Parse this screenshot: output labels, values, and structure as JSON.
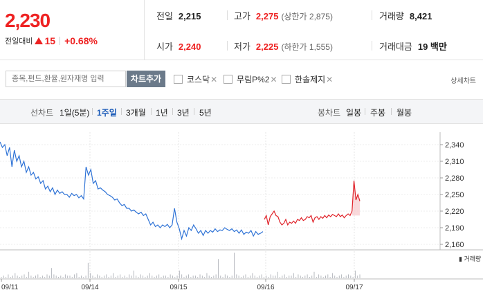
{
  "summary": {
    "price": "2,230",
    "change_label": "전일대비",
    "change_value": "15",
    "change_rate": "+0.68%",
    "stats": {
      "prev_close_label": "전일",
      "prev_close": "2,215",
      "high_label": "고가",
      "high": "2,275",
      "upper_limit": "(상한가 2,875)",
      "volume_label": "거래량",
      "volume": "8,421",
      "open_label": "시가",
      "open": "2,240",
      "low_label": "저가",
      "low": "2,225",
      "lower_limit": "(하한가 1,555)",
      "amount_label": "거래대금",
      "amount": "19 백만"
    }
  },
  "toolbar": {
    "search_placeholder": "종목,펀드,환율,원자재명 입력",
    "add_chart": "차트추가",
    "compare": [
      "코스닥",
      "무림P%2",
      "한솔제지"
    ],
    "detail_chart": "상세차트"
  },
  "period": {
    "line_label": "선차트",
    "line_options": [
      "1일(5분)",
      "1주일",
      "3개월",
      "1년",
      "3년",
      "5년"
    ],
    "line_active": "1주일",
    "candle_label": "봉차트",
    "candle_options": [
      "일봉",
      "주봉",
      "월봉"
    ]
  },
  "chart_data": {
    "type": "line",
    "y_ticks": [
      "2,340",
      "2,310",
      "2,280",
      "2,250",
      "2,220",
      "2,190",
      "2,160"
    ],
    "ylim": [
      2160,
      2340
    ],
    "x_labels": [
      "09/11",
      "09/14",
      "09/15",
      "09/16",
      "09/17"
    ],
    "volume_label": "거래량",
    "series": [
      {
        "color": "#2f73d6",
        "values": [
          2345,
          2335,
          2340,
          2320,
          2335,
          2300,
          2330,
          2310,
          2320,
          2300,
          2310,
          2290,
          2300,
          2285,
          2290,
          2278,
          2282,
          2270,
          2275,
          2260,
          2265,
          2255,
          2262,
          2250,
          2258,
          2252,
          2255,
          2250,
          2250,
          2245,
          2252,
          2248,
          2250,
          2244,
          2248,
          2242,
          2300,
          2285,
          2295,
          2270,
          2275,
          2260,
          2262,
          2258,
          2255,
          2250,
          2248,
          2245,
          2240,
          2242,
          2235,
          2230,
          2232,
          2225,
          2225,
          2220,
          2222,
          2218,
          2215,
          2218,
          2212,
          2215,
          2205,
          2195,
          2200,
          2192,
          2195,
          2190,
          2195,
          2192,
          2196,
          2190,
          2195,
          2225,
          2200,
          2188,
          2170,
          2185,
          2175,
          2190,
          2185,
          2195,
          2188,
          2180,
          2185,
          2176,
          2185,
          2180,
          2185,
          2182,
          2188,
          2183,
          2186,
          2185,
          2190,
          2187,
          2185,
          2188,
          2183,
          2186,
          2180,
          2186,
          2178,
          2182,
          2180,
          2185,
          2175,
          2183,
          2178,
          2180,
          2183
        ]
      },
      {
        "color": "#e0232a",
        "values": [
          2205,
          2212,
          2195,
          2210,
          2215,
          2220,
          2212,
          2210,
          2200,
          2195,
          2198,
          2205,
          2195,
          2200,
          2198,
          2202,
          2198,
          2205,
          2203,
          2208,
          2203,
          2205,
          2210,
          2208,
          2212,
          2200,
          2208,
          2210,
          2205,
          2210,
          2207,
          2212,
          2208,
          2213,
          2210,
          2214,
          2212,
          2210,
          2215,
          2210,
          2213,
          2208,
          2212,
          2215,
          2212,
          2220,
          2275,
          2240,
          2250,
          2238
        ]
      }
    ],
    "volume": [
      1,
      2,
      1,
      3,
      1,
      2,
      4,
      2,
      1,
      2,
      3,
      1,
      5,
      2,
      1,
      2,
      3,
      1,
      2,
      1,
      3,
      2,
      8,
      3,
      2,
      1,
      2,
      1,
      3,
      2,
      2,
      1,
      3,
      4,
      1,
      2,
      1,
      2,
      12,
      4,
      2,
      1,
      3,
      2,
      1,
      2,
      3,
      1,
      2,
      4,
      1,
      2,
      3,
      1,
      2,
      1,
      3,
      2,
      6,
      2,
      1,
      3,
      2,
      1,
      2,
      4,
      2,
      1,
      2,
      3,
      1,
      2,
      2,
      1,
      3,
      2,
      1,
      2,
      6,
      3,
      1,
      2,
      3,
      1,
      2,
      2,
      1,
      3,
      2,
      1,
      4,
      2,
      1,
      2,
      3,
      15,
      2,
      1,
      3,
      2,
      1,
      2,
      20,
      3,
      2,
      1,
      2,
      3,
      1,
      2,
      4,
      2,
      1,
      2,
      3,
      1,
      2,
      1,
      3,
      2,
      2,
      5,
      1,
      2,
      3,
      1,
      2,
      2,
      4,
      1,
      3,
      2,
      1,
      2,
      3,
      1,
      2,
      5,
      1,
      3,
      2,
      1,
      2,
      3,
      1,
      4,
      2,
      1,
      2,
      3,
      1,
      2,
      3,
      2,
      1,
      6,
      2,
      3
    ]
  }
}
